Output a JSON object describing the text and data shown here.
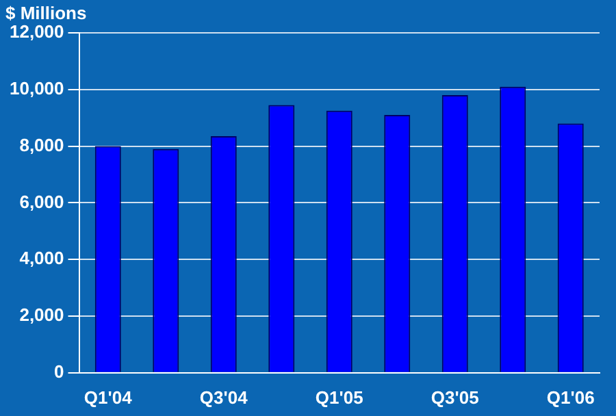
{
  "chart_data": {
    "type": "bar",
    "ylabel": "$ Millions",
    "categories": [
      "Q1'04",
      null,
      "Q3'04",
      null,
      "Q1'05",
      null,
      "Q3'05",
      null,
      "Q1'06"
    ],
    "values": [
      8000,
      7900,
      8350,
      9450,
      9250,
      9100,
      9800,
      10100,
      8800
    ],
    "color": "#0000ff",
    "ylim": [
      0,
      12000
    ],
    "yticks": [
      {
        "value": 0,
        "label": "0"
      },
      {
        "value": 2000,
        "label": "2,000"
      },
      {
        "value": 4000,
        "label": "4,000"
      },
      {
        "value": 6000,
        "label": "6,000"
      },
      {
        "value": 8000,
        "label": "8,000"
      },
      {
        "value": 10000,
        "label": "10,000"
      },
      {
        "value": 12000,
        "label": "12,000"
      }
    ],
    "grid": "y",
    "legend": false
  }
}
